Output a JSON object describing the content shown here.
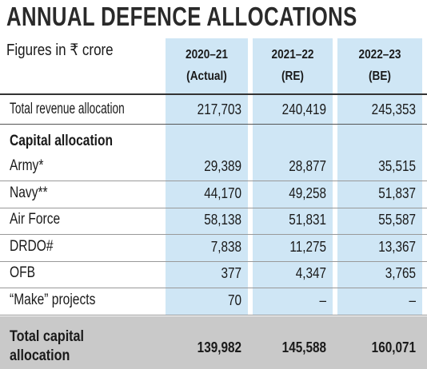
{
  "header": {
    "title": "ANNUAL DEFENCE ALLOCATIONS",
    "subtitle": "Figures in ₹ crore"
  },
  "table": {
    "columns": [
      [
        "2020–21",
        "(Actual)"
      ],
      [
        "2021–22",
        "(RE)"
      ],
      [
        "2022–23",
        "(BE)"
      ]
    ],
    "rows": [
      {
        "label": "Total revenue allocation",
        "values": [
          "217,703",
          "240,419",
          "245,353"
        ]
      },
      {
        "label": "Capital allocation"
      },
      {
        "label": "Army*",
        "values": [
          "29,389",
          "28,877",
          "35,515"
        ]
      },
      {
        "label": "Navy**",
        "values": [
          "44,170",
          "49,258",
          "51,837"
        ]
      },
      {
        "label": "Air Force",
        "values": [
          "58,138",
          "51,831",
          "55,587"
        ]
      },
      {
        "label": "DRDO#",
        "values": [
          "7,838",
          "11,275",
          "13,367"
        ]
      },
      {
        "label": "OFB",
        "values": [
          "377",
          "4,347",
          "3,765"
        ]
      },
      {
        "label": "“Make” projects",
        "values": [
          "70",
          "–",
          "–"
        ]
      }
    ],
    "total": {
      "label": "Total capital allocation",
      "values": [
        "139,982",
        "145,588",
        "160,071"
      ]
    }
  }
}
